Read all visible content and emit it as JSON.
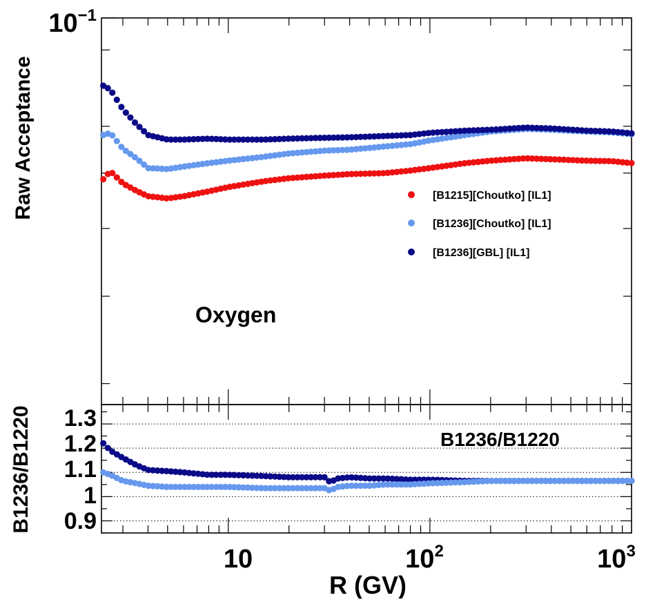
{
  "colors": {
    "b1215_choutko": "#ee1111",
    "b1236_choutko": "#6699ee",
    "b1236_gbl": "#0a0a88"
  },
  "chart_data": [
    {
      "type": "scatter",
      "panel": "top",
      "xscale": "log",
      "yscale": "log",
      "xlim": [
        2.35,
        1000
      ],
      "ylim": [
        0.028,
        0.1
      ],
      "ylabel": "Raw Acceptance",
      "ytick_labels": [
        {
          "base": "10",
          "exp": "−1"
        }
      ],
      "annotation": "Oxygen",
      "legend_position": "center-right",
      "series": [
        {
          "name": "[B1215][Choutko] [IL1]",
          "color": "#ee1111",
          "points": [
            [
              2.4,
              0.0588
            ],
            [
              2.6,
              0.0604
            ],
            [
              3.0,
              0.058
            ],
            [
              3.5,
              0.0566
            ],
            [
              4.0,
              0.0556
            ],
            [
              5.0,
              0.0552
            ],
            [
              6.0,
              0.0556
            ],
            [
              8.0,
              0.0565
            ],
            [
              10,
              0.0573
            ],
            [
              15,
              0.0584
            ],
            [
              20,
              0.059
            ],
            [
              30,
              0.0595
            ],
            [
              40,
              0.0598
            ],
            [
              60,
              0.06
            ],
            [
              80,
              0.0605
            ],
            [
              100,
              0.061
            ],
            [
              150,
              0.062
            ],
            [
              200,
              0.0625
            ],
            [
              300,
              0.063
            ],
            [
              400,
              0.0628
            ],
            [
              600,
              0.0625
            ],
            [
              800,
              0.0624
            ],
            [
              1000,
              0.062
            ]
          ]
        },
        {
          "name": "[B1236][Choutko] [IL1]",
          "color": "#6699ee",
          "points": [
            [
              2.4,
              0.068
            ],
            [
              2.6,
              0.0685
            ],
            [
              3.0,
              0.065
            ],
            [
              3.5,
              0.063
            ],
            [
              4.0,
              0.061
            ],
            [
              5.0,
              0.0608
            ],
            [
              6.0,
              0.0613
            ],
            [
              8.0,
              0.062
            ],
            [
              10,
              0.0625
            ],
            [
              15,
              0.0633
            ],
            [
              20,
              0.064
            ],
            [
              30,
              0.0646
            ],
            [
              40,
              0.0648
            ],
            [
              60,
              0.0655
            ],
            [
              80,
              0.066
            ],
            [
              100,
              0.0668
            ],
            [
              150,
              0.068
            ],
            [
              200,
              0.0688
            ],
            [
              300,
              0.0694
            ],
            [
              400,
              0.0692
            ],
            [
              600,
              0.0688
            ],
            [
              800,
              0.0686
            ],
            [
              1000,
              0.0682
            ]
          ]
        },
        {
          "name": "[B1236][GBL] [IL1]",
          "color": "#0a0a88",
          "points": [
            [
              2.4,
              0.08
            ],
            [
              2.6,
              0.079
            ],
            [
              3.0,
              0.074
            ],
            [
              3.5,
              0.0705
            ],
            [
              4.0,
              0.068
            ],
            [
              5.0,
              0.067
            ],
            [
              6.0,
              0.067
            ],
            [
              8.0,
              0.0672
            ],
            [
              10,
              0.067
            ],
            [
              15,
              0.067
            ],
            [
              20,
              0.0672
            ],
            [
              30,
              0.0674
            ],
            [
              40,
              0.0675
            ],
            [
              60,
              0.0678
            ],
            [
              80,
              0.068
            ],
            [
              100,
              0.0685
            ],
            [
              150,
              0.069
            ],
            [
              200,
              0.0692
            ],
            [
              300,
              0.0697
            ],
            [
              400,
              0.0695
            ],
            [
              600,
              0.069
            ],
            [
              800,
              0.0688
            ],
            [
              1000,
              0.0684
            ]
          ]
        }
      ]
    },
    {
      "type": "scatter",
      "panel": "bottom",
      "xscale": "log",
      "xlim": [
        2.35,
        1000
      ],
      "ylim": [
        0.85,
        1.38
      ],
      "xlabel": "R (GV)",
      "ylabel": "B1236/B1220",
      "annotation": "B1236/B1220",
      "ytick_labels": [
        "0.9",
        "1",
        "1.1",
        "1.2",
        "1.3"
      ],
      "xtick_labels": [
        {
          "base": "10",
          "exp": ""
        },
        {
          "base": "10",
          "exp": "2"
        },
        {
          "base": "10",
          "exp": "3"
        }
      ],
      "dotted_gridlines": [
        0.9,
        1.0,
        1.1,
        1.2,
        1.3
      ],
      "series": [
        {
          "color": "#0a0a88",
          "points": [
            [
              2.4,
              1.22
            ],
            [
              2.6,
              1.19
            ],
            [
              3.0,
              1.16
            ],
            [
              3.5,
              1.13
            ],
            [
              4.0,
              1.11
            ],
            [
              5.0,
              1.105
            ],
            [
              6.0,
              1.1
            ],
            [
              8.0,
              1.09
            ],
            [
              10,
              1.09
            ],
            [
              15,
              1.085
            ],
            [
              20,
              1.08
            ],
            [
              30,
              1.08
            ],
            [
              32,
              1.06
            ],
            [
              35,
              1.075
            ],
            [
              40,
              1.08
            ],
            [
              50,
              1.075
            ],
            [
              60,
              1.075
            ],
            [
              80,
              1.07
            ],
            [
              100,
              1.07
            ],
            [
              150,
              1.065
            ],
            [
              200,
              1.065
            ],
            [
              300,
              1.065
            ],
            [
              400,
              1.065
            ],
            [
              600,
              1.065
            ],
            [
              800,
              1.065
            ],
            [
              1000,
              1.065
            ]
          ]
        },
        {
          "color": "#6699ee",
          "points": [
            [
              2.4,
              1.1
            ],
            [
              2.6,
              1.09
            ],
            [
              3.0,
              1.065
            ],
            [
              3.5,
              1.055
            ],
            [
              4.0,
              1.045
            ],
            [
              5.0,
              1.04
            ],
            [
              6.0,
              1.04
            ],
            [
              8.0,
              1.04
            ],
            [
              10,
              1.04
            ],
            [
              15,
              1.035
            ],
            [
              20,
              1.035
            ],
            [
              30,
              1.035
            ],
            [
              32,
              1.025
            ],
            [
              35,
              1.04
            ],
            [
              40,
              1.045
            ],
            [
              50,
              1.045
            ],
            [
              60,
              1.05
            ],
            [
              80,
              1.05
            ],
            [
              100,
              1.055
            ],
            [
              150,
              1.06
            ],
            [
              200,
              1.065
            ],
            [
              300,
              1.065
            ],
            [
              400,
              1.065
            ],
            [
              600,
              1.065
            ],
            [
              800,
              1.065
            ],
            [
              1000,
              1.065
            ]
          ]
        }
      ]
    }
  ]
}
